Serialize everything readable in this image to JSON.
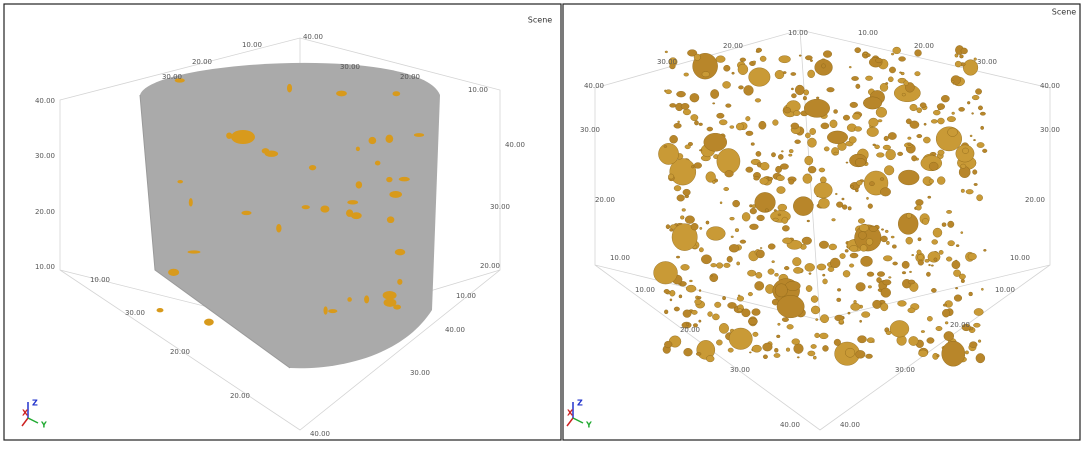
{
  "panels": [
    {
      "title": "Scene",
      "tick_labels": [
        "30.00",
        "20.00",
        "10.00",
        "40.00",
        "30.00",
        "20.00",
        "10.00",
        "40.00",
        "30.00",
        "20.00",
        "10.00",
        "40.00",
        "30.00",
        "20.00",
        "10.00",
        "30.00",
        "20.00",
        "10.00",
        "40.00",
        "30.00",
        "20.00",
        "40.00"
      ],
      "axes": [
        "X",
        "Y",
        "Z"
      ]
    },
    {
      "title": "Scene",
      "tick_labels": [
        "10.00",
        "10.00",
        "20.00",
        "20.00",
        "30.00",
        "30.00",
        "40.00",
        "40.00",
        "30.00",
        "20.00",
        "10.00",
        "30.00",
        "20.00",
        "10.00",
        "10.00",
        "20.00",
        "30.00",
        "40.00",
        "10.00",
        "20.00",
        "30.00",
        "40.00"
      ],
      "axes": [
        "X",
        "Y",
        "Z"
      ]
    }
  ]
}
